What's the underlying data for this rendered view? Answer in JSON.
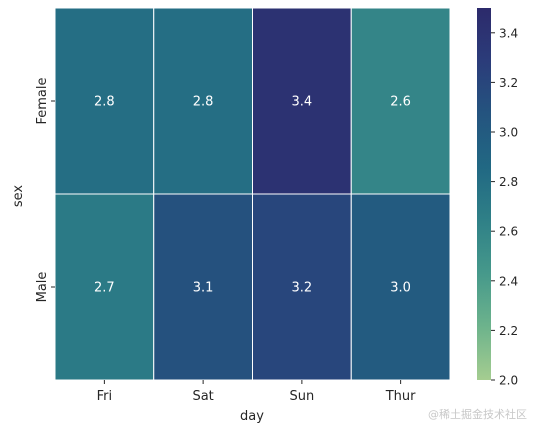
{
  "chart_data": {
    "type": "heatmap",
    "title": "",
    "xlabel": "day",
    "ylabel": "sex",
    "x_categories": [
      "Fri",
      "Sat",
      "Sun",
      "Thur"
    ],
    "y_categories": [
      "Female",
      "Male"
    ],
    "values": [
      [
        2.8,
        2.8,
        3.4,
        2.6
      ],
      [
        2.7,
        3.1,
        3.2,
        3.0
      ]
    ],
    "value_labels": [
      [
        "2.8",
        "2.8",
        "3.4",
        "2.6"
      ],
      [
        "2.7",
        "3.1",
        "3.2",
        "3.0"
      ]
    ],
    "colorbar": {
      "range": [
        2.0,
        3.5
      ],
      "ticks": [
        2.0,
        2.2,
        2.4,
        2.6,
        2.8,
        3.0,
        3.2,
        3.4
      ],
      "tick_labels": [
        "2.0",
        "2.2",
        "2.4",
        "2.6",
        "2.8",
        "3.0",
        "3.2",
        "3.4"
      ],
      "colormap": "crest",
      "gradient_colors": [
        "#a5cd90",
        "#6db38c",
        "#46998b",
        "#2f8087",
        "#216883",
        "#24547f",
        "#2b3c7a",
        "#2c2a6b"
      ]
    },
    "cell_border_color": "#ffffff",
    "annotation_text_color": "#ffffff",
    "grid": false
  },
  "watermark": "@稀土掘金技术社区"
}
